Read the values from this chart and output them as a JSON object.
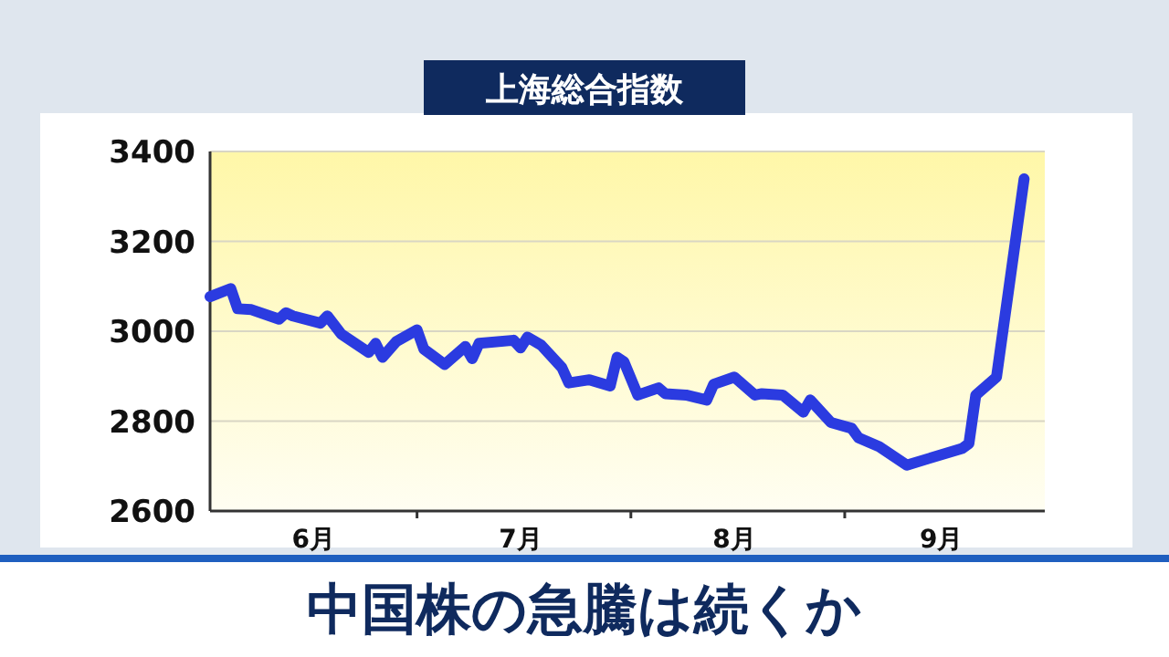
{
  "chart_data": {
    "type": "line",
    "title": "上海総合指数",
    "x": [
      "--06-01",
      "--06-04",
      "--06-05",
      "--06-07",
      "--06-11",
      "--06-12",
      "--06-13",
      "--06-17",
      "--06-18",
      "--06-20",
      "--06-24",
      "--06-25",
      "--06-26",
      "--06-28",
      "--07-01",
      "--07-02",
      "--07-05",
      "--07-08",
      "--07-09",
      "--07-10",
      "--07-15",
      "--07-16",
      "--07-17",
      "--07-19",
      "--07-22",
      "--07-23",
      "--07-26",
      "--07-29",
      "--07-30",
      "--07-31",
      "--08-02",
      "--08-05",
      "--08-06",
      "--08-09",
      "--08-12",
      "--08-13",
      "--08-16",
      "--08-19",
      "--08-20",
      "--08-23",
      "--08-26",
      "--08-27",
      "--08-30",
      "--09-02",
      "--09-03",
      "--09-06",
      "--09-10",
      "--09-13",
      "--09-18",
      "--09-19",
      "--09-20",
      "--09-23",
      "--09-27"
    ],
    "series": [
      {
        "color": "#2b3be0",
        "values": [
          3077,
          3095,
          3050,
          3048,
          3027,
          3041,
          3034,
          3018,
          3034,
          2994,
          2953,
          2973,
          2942,
          2977,
          3003,
          2960,
          2926,
          2966,
          2939,
          2973,
          2980,
          2963,
          2987,
          2969,
          2919,
          2885,
          2892,
          2878,
          2942,
          2932,
          2858,
          2874,
          2861,
          2858,
          2847,
          2882,
          2898,
          2858,
          2861,
          2858,
          2820,
          2847,
          2797,
          2784,
          2763,
          2743,
          2702,
          2716,
          2739,
          2750,
          2858,
          2898,
          3339
        ]
      }
    ],
    "xlim": [
      "--06-01",
      "--09-30"
    ],
    "xticks": [
      {
        "value": "--06-16",
        "label": "6月"
      },
      {
        "value": "--07-01",
        "label": null
      },
      {
        "value": "--07-16",
        "label": "7月"
      },
      {
        "value": "--08-01",
        "label": null
      },
      {
        "value": "--08-16",
        "label": "8月"
      },
      {
        "value": "--09-01",
        "label": null
      },
      {
        "value": "--09-15",
        "label": "9月"
      }
    ],
    "ylim": [
      2600,
      3400
    ],
    "yticks": [
      2600,
      2800,
      3000,
      3200,
      3400
    ],
    "grid": "y",
    "annotations": [
      "中国株の急騰は続くか"
    ]
  }
}
